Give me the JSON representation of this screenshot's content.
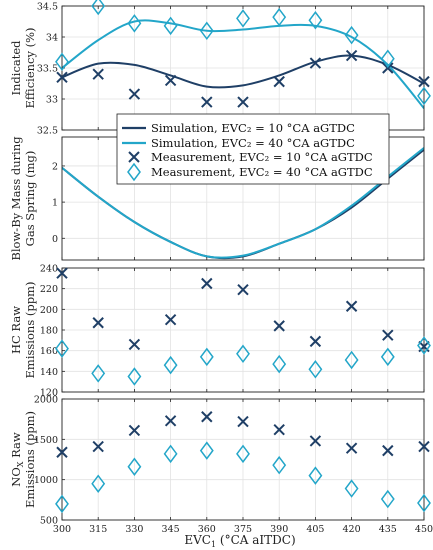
{
  "chart_data": {
    "type": "line",
    "x": [
      300,
      315,
      330,
      345,
      360,
      375,
      390,
      405,
      420,
      435,
      450
    ],
    "x_ticks": [
      300,
      315,
      330,
      345,
      360,
      375,
      390,
      405,
      420,
      435,
      450
    ],
    "xlabel": {
      "main": "EVC",
      "sub": "1",
      "rest": " (°CA aITDC)"
    },
    "xlim": [
      300,
      450
    ],
    "grid": true,
    "legend": {
      "placement": "center-between-top-panels",
      "entries": [
        "Simulation, EVC₂ = 10 °CA aGTDC",
        "Simulation, EVC₂ = 40 °CA aGTDC",
        "Measurement, EVC₂ = 10 °CA aGTDC",
        "Measurement, EVC₂ = 40 °CA aGTDC"
      ]
    },
    "colors": {
      "dark": "#1f3f66",
      "light": "#23a6c9"
    },
    "panels": [
      {
        "ylabel": [
          "Indicated",
          "Efficiency (%)"
        ],
        "ylim": [
          32.5,
          34.5
        ],
        "yticks": [
          32.5,
          33,
          33.5,
          34,
          34.5
        ],
        "sim10": [
          33.35,
          33.57,
          33.55,
          33.38,
          33.2,
          33.22,
          33.38,
          33.6,
          33.7,
          33.55,
          33.25
        ],
        "sim40": [
          33.5,
          33.95,
          34.25,
          34.22,
          34.1,
          34.12,
          34.18,
          34.18,
          34.0,
          33.55,
          32.85
        ],
        "meas10": [
          33.35,
          33.4,
          33.08,
          33.3,
          32.95,
          32.95,
          33.28,
          33.58,
          33.7,
          33.5,
          33.28
        ],
        "meas40": [
          33.6,
          34.5,
          34.22,
          34.18,
          34.1,
          34.3,
          34.32,
          34.27,
          34.03,
          33.65,
          33.05
        ]
      },
      {
        "ylabel": [
          "Blow-By Mass during",
          "Gas Spring (mg)"
        ],
        "ylim": [
          -0.6,
          2.8
        ],
        "yticks": [
          0,
          1,
          2
        ],
        "sim10": [
          1.95,
          1.15,
          0.45,
          -0.1,
          -0.5,
          -0.5,
          -0.15,
          0.25,
          0.85,
          1.65,
          2.45
        ],
        "sim40": [
          1.95,
          1.15,
          0.45,
          -0.1,
          -0.5,
          -0.48,
          -0.15,
          0.25,
          0.9,
          1.7,
          2.5
        ]
      },
      {
        "ylabel": [
          "HC Raw",
          "Emissions (ppm)"
        ],
        "ylim": [
          120,
          240
        ],
        "yticks": [
          120,
          140,
          160,
          180,
          200,
          220,
          240
        ],
        "meas10": [
          235,
          187,
          166,
          190,
          225,
          219,
          184,
          169,
          203,
          175,
          164
        ],
        "meas40": [
          162,
          138,
          135,
          146,
          154,
          157,
          147,
          142,
          151,
          154,
          165
        ]
      },
      {
        "ylabel": [
          "NO",
          "X",
          " Raw",
          "Emissions (ppm)"
        ],
        "ylim": [
          500,
          2000
        ],
        "yticks": [
          500,
          1000,
          1500,
          2000
        ],
        "meas10": [
          1340,
          1410,
          1610,
          1730,
          1780,
          1720,
          1620,
          1480,
          1390,
          1360,
          1410
        ],
        "meas40": [
          700,
          950,
          1160,
          1320,
          1360,
          1320,
          1180,
          1050,
          890,
          760,
          710
        ]
      }
    ]
  }
}
